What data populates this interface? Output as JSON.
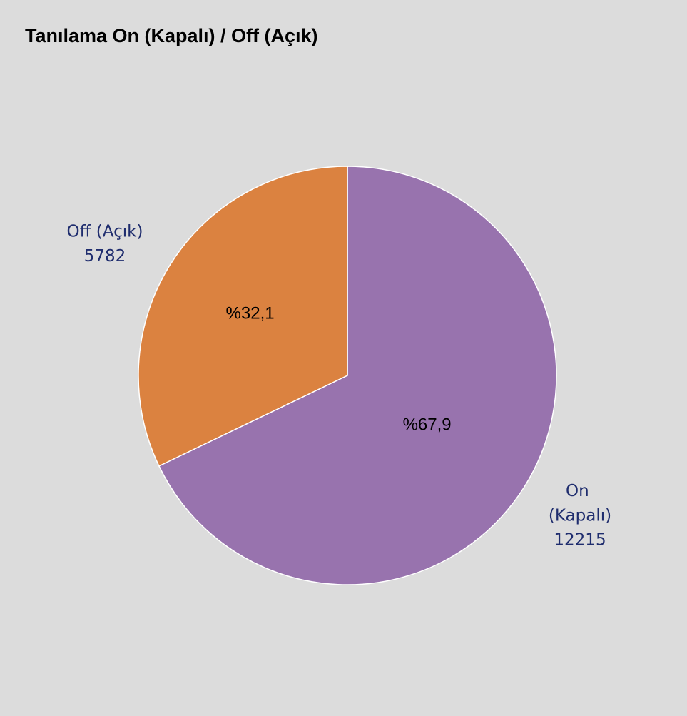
{
  "chart_data": {
    "type": "pie",
    "title": "Tanılama On (Kapalı) / Off (Açık)",
    "categories": [
      "On (Kapalı)",
      "Off (Açık)"
    ],
    "values": [
      12215,
      5782
    ],
    "percentages": [
      67.9,
      32.1
    ],
    "percentage_labels": [
      "%67,9",
      "%32,1"
    ],
    "colors": [
      "#9873ae",
      "#db8240"
    ]
  }
}
